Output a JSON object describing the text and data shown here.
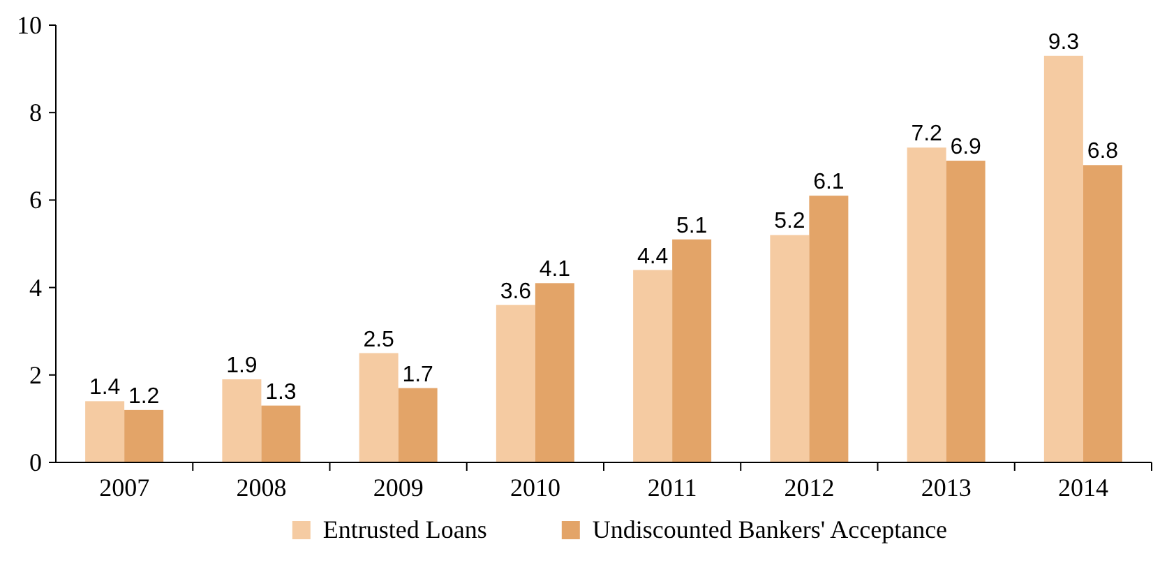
{
  "chart_data": {
    "type": "bar",
    "categories": [
      "2007",
      "2008",
      "2009",
      "2010",
      "2011",
      "2012",
      "2013",
      "2014"
    ],
    "series": [
      {
        "name": "Entrusted Loans",
        "color": "#f5cba2",
        "values": [
          1.4,
          1.9,
          2.5,
          3.6,
          4.4,
          5.2,
          7.2,
          9.3
        ]
      },
      {
        "name": "Undiscounted Bankers' Acceptance",
        "color": "#e3a468",
        "values": [
          1.2,
          1.3,
          1.7,
          4.1,
          5.1,
          6.1,
          6.9,
          6.8
        ]
      }
    ],
    "ylim": [
      0,
      10
    ],
    "yticks": [
      0,
      2,
      4,
      6,
      8,
      10
    ],
    "grid": false,
    "legend": "bottom",
    "data_labels": true
  }
}
